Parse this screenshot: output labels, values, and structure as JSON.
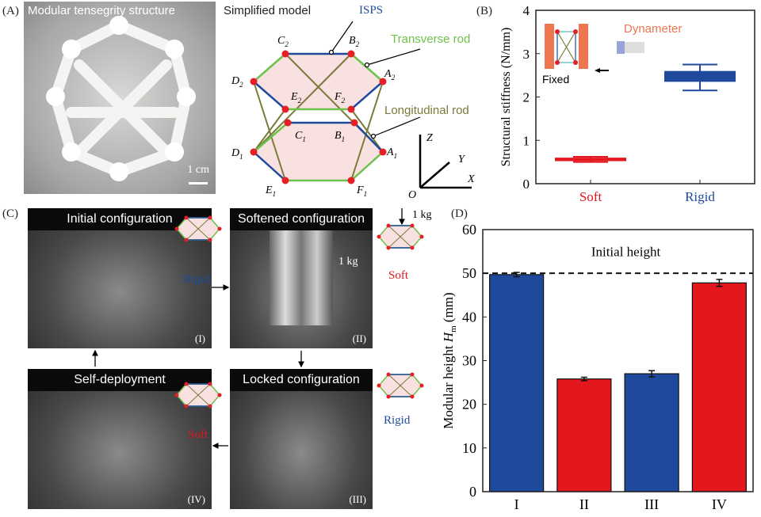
{
  "panels": {
    "a": "(A)",
    "b": "(B)",
    "c": "(C)",
    "d": "(D)"
  },
  "panel_a": {
    "caption": "Modular tensegrity structure",
    "scale": "1 cm"
  },
  "model": {
    "title": "Simplified model",
    "isps": "ISPS",
    "transverse": "Transverse rod",
    "longitudinal": "Longitudinal rod",
    "nodes": {
      "C2": "C",
      "B2": "B",
      "D2": "D",
      "A2": "A",
      "E2": "E",
      "F2": "F",
      "C1": "C",
      "B1": "B",
      "D1": "D",
      "A1": "A",
      "E1": "E",
      "F1": "F"
    },
    "sub2": "2",
    "sub1": "1",
    "axes": {
      "z": "Z",
      "y": "Y",
      "x": "X",
      "o": "O"
    }
  },
  "panel_c": {
    "states": [
      {
        "title": "Initial configuration",
        "roman": "(I)",
        "mode": "Rigid"
      },
      {
        "title": "Softened configuration",
        "roman": "(II)",
        "mode": "Soft",
        "load": "1 kg",
        "load_icon": "1 kg"
      },
      {
        "title": "Locked configuration",
        "roman": "(III)",
        "mode": "Rigid"
      },
      {
        "title": "Self-deployment",
        "roman": "(IV)",
        "mode": "Soft"
      }
    ]
  },
  "colors": {
    "rigid": "#1f4a9c",
    "soft": "#e3171e",
    "transverse": "#6cc24a",
    "longitudinal": "#7a7a3a",
    "node": "#e61e25",
    "dynameter": "#ec7650"
  },
  "chart_data": [
    {
      "type": "box",
      "title": "",
      "ylabel": "Structural stiffness (N/mm)",
      "ylim": [
        0,
        4
      ],
      "yticks": [
        0,
        1,
        2,
        3,
        4
      ],
      "categories": [
        "Soft",
        "Rigid"
      ],
      "boxes": [
        {
          "name": "Soft",
          "q1": 0.52,
          "q3": 0.6,
          "median": 0.55,
          "min": 0.5,
          "max": 0.62,
          "color": "#e3171e"
        },
        {
          "name": "Rigid",
          "q1": 2.35,
          "q3": 2.6,
          "median": 2.45,
          "min": 2.15,
          "max": 2.75,
          "color": "#1f4a9c"
        }
      ],
      "inset": {
        "dynameter": "Dynameter",
        "fixed": "Fixed"
      }
    },
    {
      "type": "bar",
      "ylabel": "Modular height H",
      "ylabel_sub": "m",
      "ylabel_unit": " (mm)",
      "ylim": [
        0,
        60
      ],
      "yticks": [
        0,
        10,
        20,
        30,
        40,
        50,
        60
      ],
      "categories": [
        "I",
        "II",
        "III",
        "IV"
      ],
      "values": [
        49.7,
        25.8,
        27.0,
        47.8
      ],
      "errors": [
        0.5,
        0.4,
        0.7,
        0.8
      ],
      "colors": [
        "#1f4a9c",
        "#e3171e",
        "#1f4a9c",
        "#e3171e"
      ],
      "reference": {
        "value": 50,
        "label": "Initial height"
      }
    }
  ]
}
